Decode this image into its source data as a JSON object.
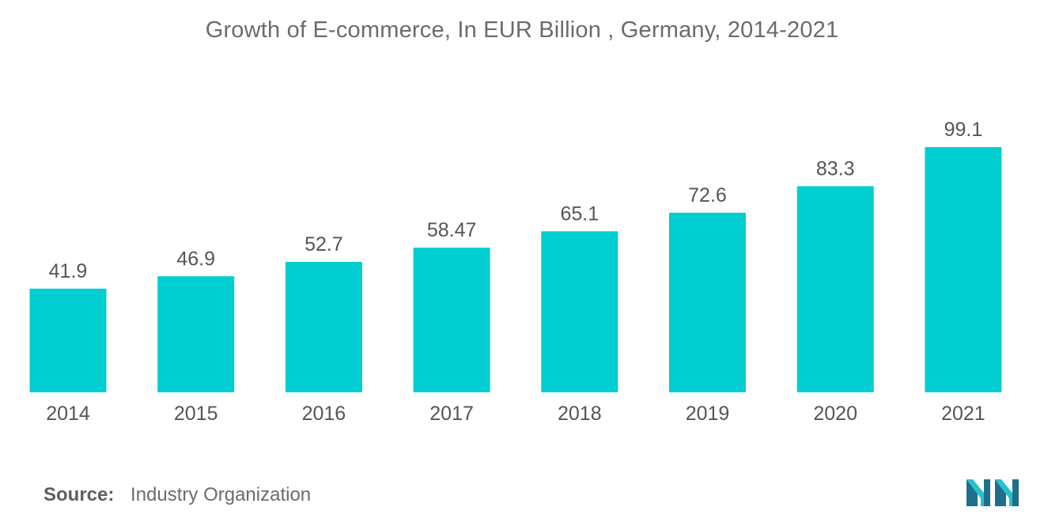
{
  "title": "Growth of E-commerce, In EUR Billion , Germany, 2014-2021",
  "source": {
    "label": "Source:",
    "text": "Industry Organization"
  },
  "colors": {
    "bar": "#00CED1",
    "text": "#555555",
    "logo_dark": "#1f6e8c",
    "logo_light": "#29c1c8"
  },
  "logo_icon": "mordor-intelligence-logo-icon",
  "chart_data": {
    "type": "bar",
    "categories": [
      "2014",
      "2015",
      "2016",
      "2017",
      "2018",
      "2019",
      "2020",
      "2021"
    ],
    "values": [
      41.9,
      46.9,
      52.7,
      58.47,
      65.1,
      72.6,
      83.3,
      99.1
    ],
    "value_labels": [
      "41.9",
      "46.9",
      "52.7",
      "58.47",
      "65.1",
      "72.6",
      "83.3",
      "99.1"
    ],
    "title": "Growth of E-commerce, In EUR Billion , Germany, 2014-2021",
    "xlabel": "",
    "ylabel": "",
    "grid": false,
    "legend": "none"
  }
}
